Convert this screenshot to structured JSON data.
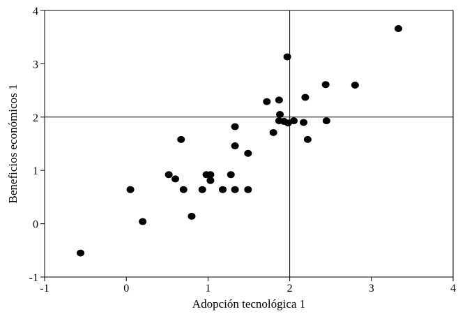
{
  "chart_data": {
    "type": "scatter",
    "xlabel": "Adopción tecnológica 1",
    "ylabel": "Beneficios económicos 1",
    "xlim": [
      -1,
      4
    ],
    "ylim": [
      -1,
      4
    ],
    "x_ticks": [
      -1,
      0,
      1,
      2,
      3,
      4
    ],
    "y_ticks": [
      -1,
      0,
      1,
      2,
      3,
      4
    ],
    "x_tick_labels": [
      "-1",
      "0",
      "1",
      "2",
      "3",
      "4"
    ],
    "y_tick_labels": [
      "-1",
      "0",
      "1",
      "2",
      "3",
      "4"
    ],
    "reference_lines": {
      "x": 2,
      "y": 2
    },
    "grid": false,
    "marker_color": "#000000",
    "points": [
      {
        "x": -0.56,
        "y": -0.55
      },
      {
        "x": 0.05,
        "y": 0.64
      },
      {
        "x": 0.2,
        "y": 0.04
      },
      {
        "x": 0.52,
        "y": 0.92
      },
      {
        "x": 0.6,
        "y": 0.84
      },
      {
        "x": 0.67,
        "y": 1.58
      },
      {
        "x": 0.7,
        "y": 0.64
      },
      {
        "x": 0.8,
        "y": 0.14
      },
      {
        "x": 0.93,
        "y": 0.64
      },
      {
        "x": 0.98,
        "y": 0.92
      },
      {
        "x": 1.03,
        "y": 0.92
      },
      {
        "x": 1.03,
        "y": 0.81
      },
      {
        "x": 1.18,
        "y": 0.64
      },
      {
        "x": 1.28,
        "y": 0.92
      },
      {
        "x": 1.33,
        "y": 1.82
      },
      {
        "x": 1.33,
        "y": 1.46
      },
      {
        "x": 1.33,
        "y": 0.64
      },
      {
        "x": 1.49,
        "y": 1.32
      },
      {
        "x": 1.49,
        "y": 0.64
      },
      {
        "x": 1.72,
        "y": 2.29
      },
      {
        "x": 1.8,
        "y": 1.71
      },
      {
        "x": 1.87,
        "y": 2.32
      },
      {
        "x": 1.88,
        "y": 2.05
      },
      {
        "x": 1.87,
        "y": 1.93
      },
      {
        "x": 1.93,
        "y": 1.92
      },
      {
        "x": 1.97,
        "y": 3.13
      },
      {
        "x": 1.98,
        "y": 1.89
      },
      {
        "x": 2.05,
        "y": 1.93
      },
      {
        "x": 2.17,
        "y": 1.9
      },
      {
        "x": 2.19,
        "y": 2.37
      },
      {
        "x": 2.22,
        "y": 1.58
      },
      {
        "x": 2.44,
        "y": 2.61
      },
      {
        "x": 2.45,
        "y": 1.93
      },
      {
        "x": 2.8,
        "y": 2.6
      },
      {
        "x": 3.33,
        "y": 3.66
      }
    ]
  }
}
